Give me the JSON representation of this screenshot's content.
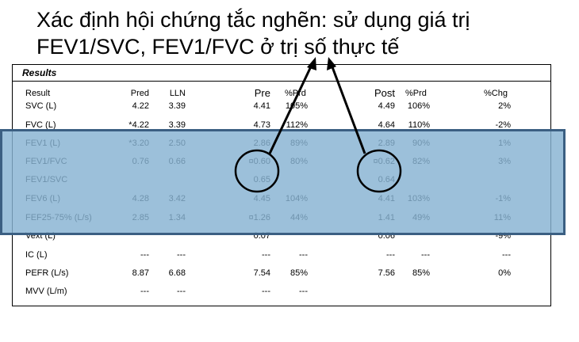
{
  "title": {
    "line1": "Xác định hội chứng tắc nghẽn: sử dụng giá trị",
    "line2": "FEV1/SVC, FEV1/FVC ở trị số thực tế"
  },
  "report": {
    "section_label": "Results",
    "columns": {
      "result": "Result",
      "pred": "Pred",
      "lln": "LLN",
      "pre": "Pre",
      "pre_prd": "%Prd",
      "post": "Post",
      "post_prd": "%Prd",
      "chg": "%Chg"
    },
    "rows": [
      {
        "label": "SVC  (L)",
        "pred": "4.22",
        "lln": "3.39",
        "pre": "4.41",
        "pre_prd": "105%",
        "post": "4.49",
        "post_prd": "106%",
        "chg": "2%"
      },
      {
        "label": "FVC  (L)",
        "pred": "*4.22",
        "lln": "3.39",
        "pre": "4.73",
        "pre_prd": "112%",
        "post": "4.64",
        "post_prd": "110%",
        "chg": "-2%"
      },
      {
        "label": "FEV1  (L)",
        "pred": "*3.20",
        "lln": "2.50",
        "pre": "2.86",
        "pre_prd": "89%",
        "post": "2.89",
        "post_prd": "90%",
        "chg": "1%"
      },
      {
        "label": "FEV1/FVC",
        "pred": "0.76",
        "lln": "0.66",
        "pre": "¤0.60",
        "pre_prd": "80%",
        "post": "¤0.62",
        "post_prd": "82%",
        "chg": "3%"
      },
      {
        "label": "FEV1/SVC",
        "pred": "",
        "lln": "",
        "pre": "0.65",
        "pre_prd": "",
        "post": "0.64",
        "post_prd": "",
        "chg": ""
      },
      {
        "label": "FEV6  (L)",
        "pred": "4.28",
        "lln": "3.42",
        "pre": "4.45",
        "pre_prd": "104%",
        "post": "4.41",
        "post_prd": "103%",
        "chg": "-1%"
      },
      {
        "label": "FEF25-75%  (L/s)",
        "pred": "2.85",
        "lln": "1.34",
        "pre": "¤1.26",
        "pre_prd": "44%",
        "post": "1.41",
        "post_prd": "49%",
        "chg": "11%"
      },
      {
        "label": "Vext  (L)",
        "pred": "",
        "lln": "",
        "pre": "0.07",
        "pre_prd": "",
        "post": "0.06",
        "post_prd": "",
        "chg": "-9%"
      },
      {
        "label": "IC  (L)",
        "pred": "---",
        "lln": "---",
        "pre": "---",
        "pre_prd": "---",
        "post": "---",
        "post_prd": "---",
        "chg": "---"
      },
      {
        "label": "PEFR  (L/s)",
        "pred": "8.87",
        "lln": "6.68",
        "pre": "7.54",
        "pre_prd": "85%",
        "post": "7.56",
        "post_prd": "85%",
        "chg": "0%"
      },
      {
        "label": "MVV  (L/m)",
        "pred": "---",
        "lln": "---",
        "pre": "---",
        "pre_prd": "---",
        "post": "",
        "post_prd": "",
        "chg": ""
      }
    ]
  },
  "colors": {
    "highlight_fill": "#86b2d2",
    "highlight_border": "#3b5f82",
    "annotation": "#000000"
  }
}
